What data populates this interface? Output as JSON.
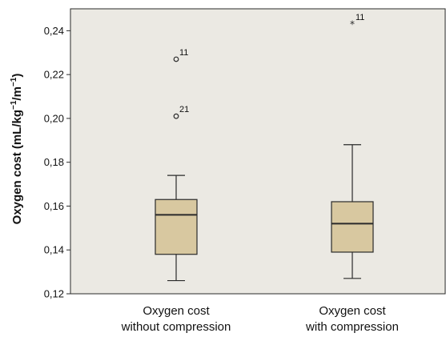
{
  "chart_data": {
    "type": "boxplot",
    "ylabel": {
      "main": "Oxygen cost (mL/kg",
      "sup1": "−1",
      "mid": "/m",
      "sup2": "−1",
      "end": ")"
    },
    "ylim": [
      0.12,
      0.25
    ],
    "y_ticks": [
      0.12,
      0.14,
      0.16,
      0.18,
      0.2,
      0.22,
      0.24
    ],
    "y_tick_labels": [
      "0,12",
      "0,14",
      "0,16",
      "0,18",
      "0,20",
      "0,22",
      "0,24"
    ],
    "grid": false,
    "categories": [
      {
        "line1": "Oxygen cost",
        "line2": "without compression"
      },
      {
        "line1": "Oxygen cost",
        "line2": "with compression"
      }
    ],
    "boxes": [
      {
        "whisker_low": 0.126,
        "q1": 0.138,
        "median": 0.156,
        "q3": 0.163,
        "whisker_high": 0.174,
        "outliers": [
          {
            "value": 0.227,
            "label": "11",
            "marker": "circle"
          },
          {
            "value": 0.201,
            "label": "21",
            "marker": "circle"
          }
        ]
      },
      {
        "whisker_low": 0.127,
        "q1": 0.139,
        "median": 0.152,
        "q3": 0.162,
        "whisker_high": 0.188,
        "outliers": [
          {
            "value": 0.243,
            "label": "11",
            "marker": "star"
          }
        ]
      }
    ],
    "colors": {
      "plot_background": "#ebe9e3",
      "box_fill": "#d8c8a0",
      "line": "#2a2a2a"
    }
  }
}
